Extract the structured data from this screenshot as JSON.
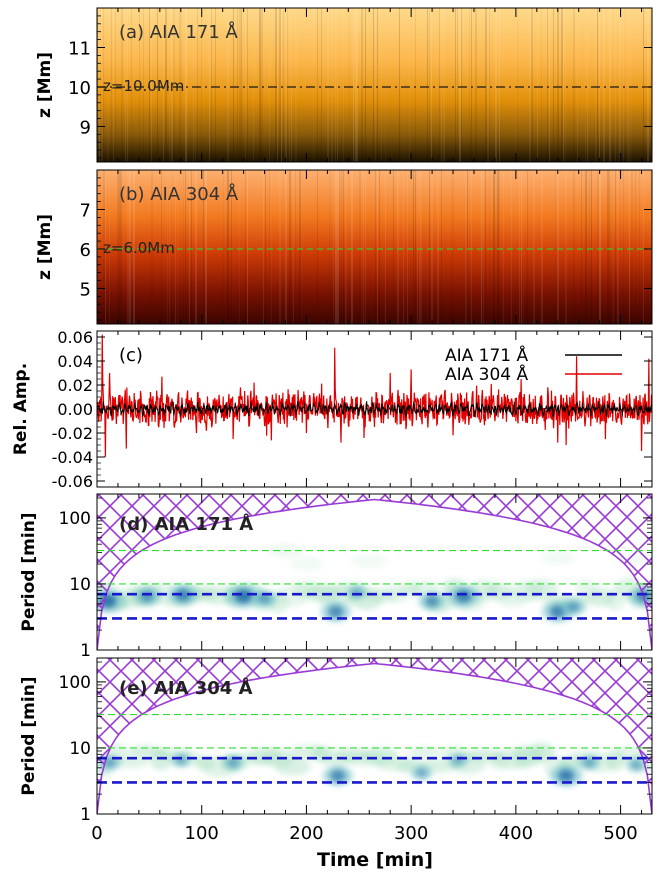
{
  "figure": {
    "xlabel": "Time [min]",
    "xticks": [
      "0",
      "100",
      "200",
      "300",
      "400",
      "500"
    ],
    "colors": {
      "aia171": "#000000",
      "aia304": "#e00000",
      "hatch": "#9a3ad6",
      "guide_green": "#33dd33",
      "guide_blue": "#1a1acc",
      "cwt": "#2a6fb0"
    }
  },
  "chart_data": [
    {
      "type": "heatmap",
      "panel": "a",
      "label": "(a) AIA 171 Å",
      "ylabel": "z [Mm]",
      "yticks": [
        "9",
        "10",
        "11"
      ],
      "ylim": [
        8.1,
        12.0
      ],
      "xlim": [
        0,
        530
      ],
      "colormap": "yellow-orange-black",
      "reference_line": {
        "z": 10.0,
        "label": "z=10.0Mm"
      }
    },
    {
      "type": "heatmap",
      "panel": "b",
      "label": "(b) AIA 304 Å",
      "ylabel": "z [Mm]",
      "yticks": [
        "5",
        "6",
        "7"
      ],
      "ylim": [
        4.1,
        8.0
      ],
      "xlim": [
        0,
        530
      ],
      "colormap": "orange-red-black",
      "reference_line": {
        "z": 6.0,
        "label": "z=6.0Mm"
      }
    },
    {
      "type": "line",
      "panel": "c",
      "label": "(c)",
      "ylabel": "Rel. Amp.",
      "yticks": [
        "-0.06",
        "-0.04",
        "-0.02",
        "0.00",
        "0.02",
        "0.04",
        "0.06"
      ],
      "ylim": [
        -0.065,
        0.065
      ],
      "xlim": [
        0,
        530
      ],
      "series": [
        {
          "name": "AIA 171 Å",
          "color": "#000000",
          "amplitude": 0.006
        },
        {
          "name": "AIA 304 Å",
          "color": "#e00000",
          "amplitude": 0.013
        }
      ],
      "spikes_304": [
        [
          5,
          0.062
        ],
        [
          8,
          -0.04
        ],
        [
          12,
          0.03
        ],
        [
          28,
          -0.033
        ],
        [
          62,
          0.027
        ],
        [
          95,
          -0.02
        ],
        [
          130,
          -0.025
        ],
        [
          150,
          0.022
        ],
        [
          200,
          -0.02
        ],
        [
          227,
          0.051
        ],
        [
          233,
          -0.028
        ],
        [
          280,
          0.03
        ],
        [
          300,
          0.033
        ],
        [
          340,
          -0.022
        ],
        [
          405,
          0.025
        ],
        [
          440,
          -0.028
        ],
        [
          448,
          -0.03
        ],
        [
          458,
          0.044
        ],
        [
          520,
          -0.035
        ],
        [
          527,
          0.042
        ]
      ],
      "legend_position": "top-right"
    },
    {
      "type": "heatmap",
      "panel": "d",
      "label": "(d) AIA 171 Å",
      "ylabel": "Period [min]",
      "yticks": [
        "1",
        "10",
        "100"
      ],
      "ylim": [
        1,
        230
      ],
      "yscale": "log",
      "xlim": [
        0,
        530
      ],
      "guide_periods_green": [
        10,
        32
      ],
      "guide_periods_blue": [
        3,
        7
      ],
      "cone_peak_period": 190,
      "power_blobs": [
        [
          10,
          5.5,
          1.0
        ],
        [
          48,
          6.5,
          0.7
        ],
        [
          82,
          6.8,
          0.85
        ],
        [
          140,
          6.5,
          1.0
        ],
        [
          160,
          6.0,
          0.6
        ],
        [
          228,
          3.8,
          0.8
        ],
        [
          248,
          7.5,
          0.45
        ],
        [
          320,
          5.5,
          0.7
        ],
        [
          350,
          6.5,
          0.9
        ],
        [
          440,
          3.8,
          0.85
        ],
        [
          455,
          4.5,
          0.6
        ],
        [
          522,
          6.5,
          0.8
        ]
      ]
    },
    {
      "type": "heatmap",
      "panel": "e",
      "label": "(e) AIA 304 Å",
      "ylabel": "Period [min]",
      "yticks": [
        "1",
        "10",
        "100"
      ],
      "ylim": [
        1,
        230
      ],
      "yscale": "log",
      "xlim": [
        0,
        530
      ],
      "guide_periods_green": [
        10,
        32
      ],
      "guide_periods_blue": [
        3,
        7
      ],
      "cone_peak_period": 190,
      "power_blobs": [
        [
          12,
          6.0,
          0.55
        ],
        [
          80,
          6.5,
          0.45
        ],
        [
          130,
          6.0,
          0.5
        ],
        [
          230,
          3.8,
          0.8
        ],
        [
          310,
          4.2,
          0.5
        ],
        [
          345,
          6.5,
          0.45
        ],
        [
          448,
          3.8,
          0.9
        ],
        [
          470,
          6.0,
          0.5
        ],
        [
          515,
          5.5,
          0.45
        ]
      ]
    }
  ]
}
